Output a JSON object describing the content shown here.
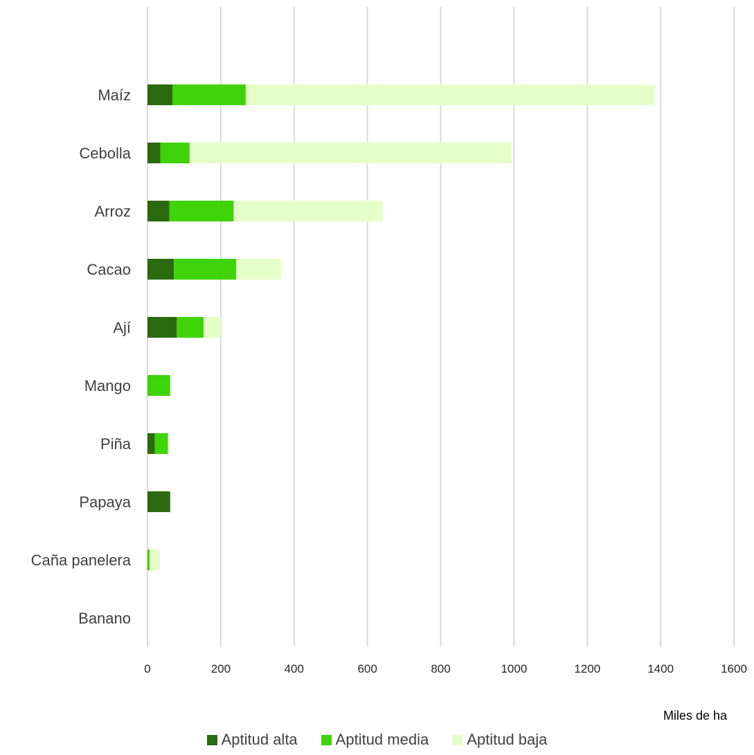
{
  "chart_data": {
    "type": "bar",
    "orientation": "horizontal",
    "stacked": true,
    "categories": [
      "Maíz",
      "Cebolla",
      "Arroz",
      "Cacao",
      "Ají",
      "Mango",
      "Piña",
      "Papaya",
      "Caña panelera",
      "Banano"
    ],
    "series": [
      {
        "name": "Aptitud alta",
        "color": "#2b6a0e",
        "values": [
          68,
          35,
          60,
          72,
          80,
          0,
          20,
          62,
          0,
          0
        ]
      },
      {
        "name": "Aptitud media",
        "color": "#3fd40a",
        "values": [
          200,
          80,
          175,
          170,
          73,
          62,
          36,
          0,
          6,
          0
        ]
      },
      {
        "name": "Aptitud baja",
        "color": "#e6ffc8",
        "values": [
          1115,
          878,
          407,
          122,
          47,
          0,
          3,
          0,
          28,
          0
        ]
      }
    ],
    "xlim": [
      0,
      1600
    ],
    "xticks": [
      "0",
      "200",
      "400",
      "600",
      "800",
      "1000",
      "1200",
      "1400",
      "1600"
    ],
    "xlabel": "Miles de ha",
    "ylabel": "",
    "title": "",
    "grid": "vertical",
    "legend_position": "bottom"
  }
}
